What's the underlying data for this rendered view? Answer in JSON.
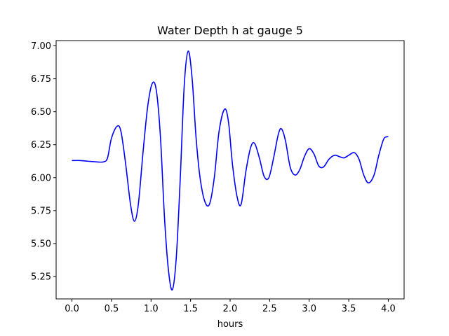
{
  "chart_data": {
    "type": "line",
    "title": "Water Depth h at gauge 5",
    "xlabel": "hours",
    "ylabel": "",
    "xlim": [
      -0.2,
      4.2
    ],
    "ylim": [
      5.08,
      7.04
    ],
    "xticks": [
      0.0,
      0.5,
      1.0,
      1.5,
      2.0,
      2.5,
      3.0,
      3.5,
      4.0
    ],
    "xtick_labels": [
      "0.0",
      "0.5",
      "1.0",
      "1.5",
      "2.0",
      "2.5",
      "3.0",
      "3.5",
      "4.0"
    ],
    "yticks": [
      5.25,
      5.5,
      5.75,
      6.0,
      6.25,
      6.5,
      6.75,
      7.0
    ],
    "ytick_labels": [
      "5.25",
      "5.50",
      "5.75",
      "6.00",
      "6.25",
      "6.50",
      "6.75",
      "7.00"
    ],
    "grid": false,
    "series": [
      {
        "color": "#0000ff",
        "points": [
          [
            0.0,
            6.13
          ],
          [
            0.1,
            6.13
          ],
          [
            0.2,
            6.125
          ],
          [
            0.3,
            6.12
          ],
          [
            0.4,
            6.12
          ],
          [
            0.45,
            6.15
          ],
          [
            0.5,
            6.3
          ],
          [
            0.57,
            6.39
          ],
          [
            0.62,
            6.35
          ],
          [
            0.68,
            6.1
          ],
          [
            0.74,
            5.8
          ],
          [
            0.79,
            5.67
          ],
          [
            0.84,
            5.8
          ],
          [
            0.9,
            6.2
          ],
          [
            0.96,
            6.55
          ],
          [
            1.02,
            6.72
          ],
          [
            1.07,
            6.65
          ],
          [
            1.12,
            6.3
          ],
          [
            1.17,
            5.7
          ],
          [
            1.22,
            5.3
          ],
          [
            1.27,
            5.15
          ],
          [
            1.32,
            5.4
          ],
          [
            1.37,
            6.0
          ],
          [
            1.42,
            6.7
          ],
          [
            1.47,
            6.96
          ],
          [
            1.52,
            6.75
          ],
          [
            1.57,
            6.3
          ],
          [
            1.62,
            6.0
          ],
          [
            1.68,
            5.82
          ],
          [
            1.74,
            5.8
          ],
          [
            1.8,
            6.0
          ],
          [
            1.86,
            6.35
          ],
          [
            1.93,
            6.52
          ],
          [
            1.98,
            6.42
          ],
          [
            2.03,
            6.1
          ],
          [
            2.09,
            5.85
          ],
          [
            2.14,
            5.8
          ],
          [
            2.2,
            6.05
          ],
          [
            2.26,
            6.23
          ],
          [
            2.31,
            6.26
          ],
          [
            2.37,
            6.15
          ],
          [
            2.43,
            6.01
          ],
          [
            2.49,
            6.0
          ],
          [
            2.55,
            6.15
          ],
          [
            2.61,
            6.33
          ],
          [
            2.65,
            6.37
          ],
          [
            2.7,
            6.28
          ],
          [
            2.76,
            6.08
          ],
          [
            2.82,
            6.02
          ],
          [
            2.88,
            6.06
          ],
          [
            2.94,
            6.16
          ],
          [
            3.0,
            6.22
          ],
          [
            3.06,
            6.18
          ],
          [
            3.12,
            6.09
          ],
          [
            3.18,
            6.08
          ],
          [
            3.25,
            6.14
          ],
          [
            3.32,
            6.17
          ],
          [
            3.38,
            6.16
          ],
          [
            3.44,
            6.15
          ],
          [
            3.5,
            6.17
          ],
          [
            3.57,
            6.19
          ],
          [
            3.63,
            6.14
          ],
          [
            3.69,
            6.02
          ],
          [
            3.75,
            5.96
          ],
          [
            3.82,
            6.02
          ],
          [
            3.88,
            6.17
          ],
          [
            3.94,
            6.29
          ],
          [
            3.98,
            6.31
          ],
          [
            4.0,
            6.31
          ]
        ]
      }
    ]
  }
}
